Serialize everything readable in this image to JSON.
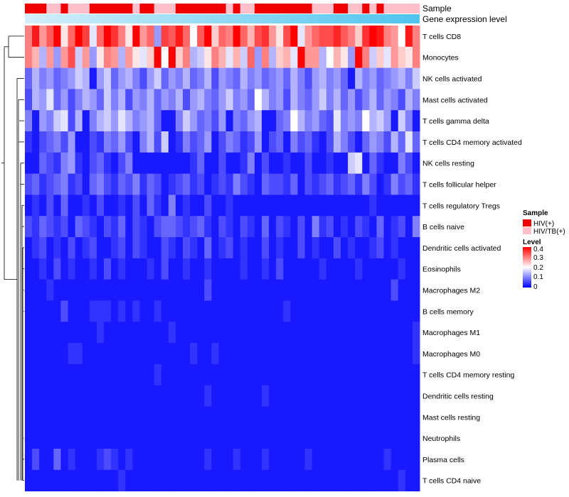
{
  "chart_data": {
    "type": "heatmap",
    "n_samples": 55,
    "annotation_tracks": [
      "Sample",
      "Gene expression level"
    ],
    "sample_groups": [
      "HIV(+)",
      "HIV(+)",
      "HIV(+)",
      "HIV/TB(+)",
      "HIV/TB(+)",
      "HIV(+)",
      "HIV/TB(+)",
      "HIV/TB(+)",
      "HIV/TB(+)",
      "HIV(+)",
      "HIV(+)",
      "HIV(+)",
      "HIV(+)",
      "HIV(+)",
      "HIV(+)",
      "HIV/TB(+)",
      "HIV(+)",
      "HIV(+)",
      "HIV/TB(+)",
      "HIV/TB(+)",
      "HIV/TB(+)",
      "HIV(+)",
      "HIV(+)",
      "HIV(+)",
      "HIV(+)",
      "HIV(+)",
      "HIV(+)",
      "HIV(+)",
      "HIV/TB(+)",
      "HIV(+)",
      "HIV/TB(+)",
      "HIV/TB(+)",
      "HIV(+)",
      "HIV(+)",
      "HIV(+)",
      "HIV(+)",
      "HIV(+)",
      "HIV(+)",
      "HIV(+)",
      "HIV(+)",
      "HIV/TB(+)",
      "HIV/TB(+)",
      "HIV/TB(+)",
      "HIV(+)",
      "HIV(+)",
      "HIV/TB(+)",
      "HIV/TB(+)",
      "HIV(+)",
      "HIV/TB(+)",
      "HIV(+)",
      "HIV/TB(+)",
      "HIV/TB(+)",
      "HIV/TB(+)",
      "HIV/TB(+)",
      "HIV/TB(+)"
    ],
    "rows": [
      "T cells CD8",
      "Monocytes",
      "NK cells activated",
      "Mast cells activated",
      "T cells gamma delta",
      "T cells CD4 memory activated",
      "NK cells resting",
      "T cells follicular helper",
      "T cells regulatory  Tregs",
      "B cells naive",
      "Dendritic cells activated",
      "Eosinophils",
      "Macrophages M2",
      "B cells memory",
      "Macrophages M1",
      "Macrophages M0",
      "T cells CD4 memory resting",
      "Dendritic cells resting",
      "Mast cells resting",
      "Neutrophils",
      "Plasma cells",
      "T cells CD4 naive"
    ],
    "values": [
      [
        0.3,
        0.38,
        0.28,
        0.33,
        0.4,
        0.22,
        0.32,
        0.4,
        0.35,
        0.18,
        0.32,
        0.4,
        0.36,
        0.3,
        0.22,
        0.4,
        0.28,
        0.32,
        0.12,
        0.35,
        0.33,
        0.38,
        0.32,
        0.2,
        0.33,
        0.4,
        0.24,
        0.32,
        0.3,
        0.42,
        0.32,
        0.26,
        0.34,
        0.36,
        0.28,
        0.22,
        0.34,
        0.4,
        0.18,
        0.28,
        0.32,
        0.34,
        0.34,
        0.37,
        0.33,
        0.3,
        0.24,
        0.36,
        0.4,
        0.38,
        0.3,
        0.28,
        0.2,
        0.38,
        0.3
      ],
      [
        0.3,
        0.26,
        0.14,
        0.28,
        0.12,
        0.28,
        0.34,
        0.16,
        0.28,
        0.12,
        0.22,
        0.3,
        0.28,
        0.14,
        0.28,
        0.22,
        0.18,
        0.24,
        0.42,
        0.2,
        0.4,
        0.24,
        0.3,
        0.14,
        0.16,
        0.22,
        0.3,
        0.26,
        0.18,
        0.26,
        0.16,
        0.32,
        0.12,
        0.3,
        0.14,
        0.24,
        0.26,
        0.18,
        0.42,
        0.28,
        0.28,
        0.14,
        0.2,
        0.26,
        0.22,
        0.12,
        0.4,
        0.3,
        0.16,
        0.24,
        0.18,
        0.28,
        0.24,
        0.22,
        0.3
      ],
      [
        0.08,
        0.14,
        0.1,
        0.12,
        0.08,
        0.1,
        0.12,
        0.16,
        0.14,
        0.02,
        0.12,
        0.16,
        0.08,
        0.12,
        0.14,
        0.1,
        0.06,
        0.12,
        0.16,
        0.08,
        0.12,
        0.1,
        0.14,
        0.08,
        0.1,
        0.14,
        0.06,
        0.12,
        0.1,
        0.08,
        0.14,
        0.1,
        0.12,
        0.08,
        0.1,
        0.12,
        0.08,
        0.14,
        0.1,
        0.06,
        0.12,
        0.14,
        0.1,
        0.12,
        0.08,
        0.02,
        0.14,
        0.1,
        0.12,
        0.08,
        0.1,
        0.12,
        0.14,
        0.1,
        0.16
      ],
      [
        0.06,
        0.14,
        0.12,
        0.18,
        0.08,
        0.12,
        0.06,
        0.1,
        0.14,
        0.12,
        0.08,
        0.16,
        0.1,
        0.14,
        0.06,
        0.12,
        0.1,
        0.14,
        0.08,
        0.12,
        0.1,
        0.14,
        0.06,
        0.12,
        0.14,
        0.1,
        0.08,
        0.12,
        0.16,
        0.1,
        0.12,
        0.08,
        0.2,
        0.14,
        0.1,
        0.12,
        0.06,
        0.14,
        0.1,
        0.08,
        0.12,
        0.16,
        0.1,
        0.14,
        0.08,
        0.12,
        0.06,
        0.1,
        0.14,
        0.08,
        0.12,
        0.1,
        0.06,
        0.14,
        0.1
      ],
      [
        0.1,
        0.02,
        0.12,
        0.1,
        0.16,
        0.18,
        0.06,
        0.14,
        0.02,
        0.1,
        0.14,
        0.16,
        0.12,
        0.18,
        0.14,
        0.1,
        0.12,
        0.14,
        0.08,
        0.02,
        0.02,
        0.1,
        0.16,
        0.12,
        0.08,
        0.1,
        0.06,
        0.12,
        0.02,
        0.1,
        0.08,
        0.12,
        0.14,
        0.02,
        0.02,
        0.08,
        0.1,
        0.2,
        0.14,
        0.1,
        0.12,
        0.08,
        0.06,
        0.18,
        0.1,
        0.12,
        0.1,
        0.2,
        0.14,
        0.16,
        0.12,
        0.02,
        0.16,
        0.1,
        0.02
      ],
      [
        0.04,
        0.02,
        0.06,
        0.08,
        0.1,
        0.06,
        0.12,
        0.02,
        0.02,
        0.06,
        0.04,
        0.1,
        0.08,
        0.12,
        0.06,
        0.02,
        0.1,
        0.14,
        0.06,
        0.16,
        0.02,
        0.04,
        0.1,
        0.06,
        0.08,
        0.12,
        0.02,
        0.06,
        0.1,
        0.08,
        0.04,
        0.06,
        0.12,
        0.02,
        0.06,
        0.08,
        0.02,
        0.1,
        0.06,
        0.08,
        0.04,
        0.02,
        0.06,
        0.14,
        0.1,
        0.06,
        0.02,
        0.08,
        0.12,
        0.1,
        0.06,
        0.14,
        0.08,
        0.18,
        0.08
      ],
      [
        0.02,
        0.02,
        0.08,
        0.06,
        0.04,
        0.1,
        0.12,
        0.04,
        0.02,
        0.06,
        0.08,
        0.04,
        0.02,
        0.06,
        0.1,
        0.02,
        0.02,
        0.02,
        0.02,
        0.02,
        0.02,
        0.02,
        0.02,
        0.04,
        0.08,
        0.02,
        0.02,
        0.06,
        0.02,
        0.02,
        0.04,
        0.1,
        0.02,
        0.06,
        0.02,
        0.02,
        0.04,
        0.02,
        0.02,
        0.06,
        0.02,
        0.02,
        0.04,
        0.02,
        0.02,
        0.16,
        0.18,
        0.02,
        0.08,
        0.04,
        0.02,
        0.02,
        0.1,
        0.06,
        0.02
      ],
      [
        0.06,
        0.08,
        0.04,
        0.06,
        0.08,
        0.1,
        0.04,
        0.06,
        0.02,
        0.08,
        0.1,
        0.06,
        0.04,
        0.08,
        0.06,
        0.1,
        0.04,
        0.08,
        0.06,
        0.02,
        0.04,
        0.06,
        0.08,
        0.04,
        0.06,
        0.02,
        0.04,
        0.06,
        0.04,
        0.1,
        0.06,
        0.04,
        0.02,
        0.08,
        0.06,
        0.06,
        0.04,
        0.08,
        0.02,
        0.06,
        0.04,
        0.06,
        0.08,
        0.04,
        0.06,
        0.08,
        0.04,
        0.1,
        0.06,
        0.02,
        0.04,
        0.1,
        0.06,
        0.08,
        0.04
      ],
      [
        0.02,
        0.04,
        0.02,
        0.06,
        0.02,
        0.08,
        0.02,
        0.02,
        0.04,
        0.02,
        0.06,
        0.02,
        0.02,
        0.04,
        0.02,
        0.06,
        0.02,
        0.08,
        0.04,
        0.02,
        0.1,
        0.02,
        0.04,
        0.02,
        0.02,
        0.06,
        0.02,
        0.02,
        0.04,
        0.02,
        0.02,
        0.02,
        0.02,
        0.02,
        0.02,
        0.02,
        0.02,
        0.02,
        0.02,
        0.02,
        0.02,
        0.02,
        0.02,
        0.02,
        0.02,
        0.02,
        0.02,
        0.02,
        0.04,
        0.02,
        0.02,
        0.02,
        0.02,
        0.02,
        0.02
      ],
      [
        0.06,
        0.04,
        0.08,
        0.06,
        0.04,
        0.06,
        0.02,
        0.08,
        0.06,
        0.04,
        0.02,
        0.06,
        0.04,
        0.08,
        0.02,
        0.06,
        0.04,
        0.02,
        0.06,
        0.08,
        0.08,
        0.06,
        0.04,
        0.06,
        0.08,
        0.04,
        0.02,
        0.06,
        0.04,
        0.02,
        0.06,
        0.04,
        0.02,
        0.08,
        0.02,
        0.06,
        0.04,
        0.02,
        0.06,
        0.02,
        0.1,
        0.04,
        0.06,
        0.02,
        0.04,
        0.02,
        0.06,
        0.04,
        0.02,
        0.08,
        0.02,
        0.04,
        0.06,
        0.02,
        0.1
      ],
      [
        0.02,
        0.04,
        0.06,
        0.02,
        0.04,
        0.02,
        0.06,
        0.02,
        0.04,
        0.06,
        0.02,
        0.02,
        0.04,
        0.06,
        0.02,
        0.06,
        0.04,
        0.02,
        0.02,
        0.06,
        0.04,
        0.02,
        0.06,
        0.04,
        0.02,
        0.08,
        0.02,
        0.04,
        0.06,
        0.02,
        0.04,
        0.02,
        0.02,
        0.06,
        0.02,
        0.04,
        0.02,
        0.02,
        0.06,
        0.02,
        0.04,
        0.02,
        0.02,
        0.06,
        0.02,
        0.04,
        0.02,
        0.02,
        0.04,
        0.06,
        0.02,
        0.04,
        0.02,
        0.02,
        0.02
      ],
      [
        0.02,
        0.02,
        0.04,
        0.02,
        0.06,
        0.02,
        0.04,
        0.02,
        0.02,
        0.04,
        0.02,
        0.06,
        0.02,
        0.04,
        0.02,
        0.02,
        0.02,
        0.04,
        0.02,
        0.06,
        0.02,
        0.02,
        0.04,
        0.02,
        0.02,
        0.04,
        0.02,
        0.02,
        0.02,
        0.02,
        0.04,
        0.02,
        0.02,
        0.04,
        0.02,
        0.06,
        0.02,
        0.02,
        0.02,
        0.02,
        0.02,
        0.04,
        0.02,
        0.02,
        0.02,
        0.02,
        0.04,
        0.02,
        0.02,
        0.02,
        0.02,
        0.02,
        0.04,
        0.02,
        0.02
      ],
      [
        0.02,
        0.02,
        0.02,
        0.04,
        0.02,
        0.02,
        0.02,
        0.02,
        0.02,
        0.02,
        0.02,
        0.02,
        0.02,
        0.02,
        0.02,
        0.02,
        0.02,
        0.02,
        0.02,
        0.02,
        0.02,
        0.02,
        0.02,
        0.02,
        0.02,
        0.06,
        0.02,
        0.02,
        0.02,
        0.02,
        0.02,
        0.02,
        0.02,
        0.02,
        0.02,
        0.02,
        0.02,
        0.02,
        0.02,
        0.02,
        0.02,
        0.02,
        0.02,
        0.02,
        0.02,
        0.02,
        0.02,
        0.02,
        0.02,
        0.02,
        0.02,
        0.06,
        0.02,
        0.02,
        0.02
      ],
      [
        0.02,
        0.02,
        0.02,
        0.02,
        0.02,
        0.06,
        0.02,
        0.02,
        0.02,
        0.04,
        0.04,
        0.04,
        0.02,
        0.04,
        0.02,
        0.04,
        0.02,
        0.02,
        0.04,
        0.02,
        0.02,
        0.02,
        0.02,
        0.02,
        0.02,
        0.02,
        0.02,
        0.02,
        0.02,
        0.02,
        0.02,
        0.02,
        0.02,
        0.02,
        0.02,
        0.02,
        0.04,
        0.02,
        0.02,
        0.02,
        0.02,
        0.02,
        0.02,
        0.02,
        0.02,
        0.02,
        0.02,
        0.02,
        0.02,
        0.02,
        0.02,
        0.02,
        0.02,
        0.02,
        0.02
      ],
      [
        0.02,
        0.02,
        0.02,
        0.02,
        0.02,
        0.02,
        0.02,
        0.02,
        0.02,
        0.02,
        0.04,
        0.02,
        0.02,
        0.02,
        0.02,
        0.02,
        0.02,
        0.02,
        0.02,
        0.02,
        0.04,
        0.02,
        0.02,
        0.02,
        0.02,
        0.02,
        0.02,
        0.02,
        0.02,
        0.02,
        0.02,
        0.02,
        0.02,
        0.02,
        0.02,
        0.02,
        0.02,
        0.02,
        0.02,
        0.02,
        0.02,
        0.02,
        0.02,
        0.02,
        0.02,
        0.02,
        0.02,
        0.02,
        0.02,
        0.02,
        0.02,
        0.02,
        0.02,
        0.02,
        0.04
      ],
      [
        0.02,
        0.02,
        0.02,
        0.02,
        0.02,
        0.02,
        0.04,
        0.04,
        0.02,
        0.02,
        0.02,
        0.02,
        0.02,
        0.02,
        0.02,
        0.02,
        0.02,
        0.02,
        0.02,
        0.02,
        0.02,
        0.02,
        0.02,
        0.04,
        0.02,
        0.02,
        0.04,
        0.02,
        0.02,
        0.02,
        0.02,
        0.02,
        0.02,
        0.02,
        0.02,
        0.02,
        0.02,
        0.02,
        0.02,
        0.02,
        0.02,
        0.02,
        0.02,
        0.02,
        0.02,
        0.02,
        0.02,
        0.02,
        0.02,
        0.02,
        0.02,
        0.02,
        0.02,
        0.02,
        0.04
      ],
      [
        0.02,
        0.02,
        0.02,
        0.02,
        0.02,
        0.02,
        0.02,
        0.02,
        0.02,
        0.02,
        0.02,
        0.02,
        0.02,
        0.02,
        0.02,
        0.02,
        0.02,
        0.02,
        0.04,
        0.02,
        0.02,
        0.02,
        0.02,
        0.02,
        0.02,
        0.02,
        0.02,
        0.02,
        0.02,
        0.02,
        0.02,
        0.02,
        0.02,
        0.02,
        0.02,
        0.02,
        0.02,
        0.02,
        0.02,
        0.02,
        0.02,
        0.02,
        0.02,
        0.02,
        0.02,
        0.02,
        0.02,
        0.02,
        0.02,
        0.02,
        0.02,
        0.02,
        0.02,
        0.02,
        0.02
      ],
      [
        0.02,
        0.02,
        0.02,
        0.02,
        0.02,
        0.02,
        0.02,
        0.02,
        0.02,
        0.02,
        0.02,
        0.02,
        0.02,
        0.02,
        0.02,
        0.02,
        0.02,
        0.02,
        0.02,
        0.02,
        0.02,
        0.02,
        0.02,
        0.02,
        0.02,
        0.04,
        0.02,
        0.02,
        0.02,
        0.02,
        0.02,
        0.02,
        0.02,
        0.04,
        0.02,
        0.02,
        0.02,
        0.02,
        0.02,
        0.02,
        0.02,
        0.02,
        0.02,
        0.02,
        0.02,
        0.02,
        0.02,
        0.02,
        0.02,
        0.02,
        0.02,
        0.02,
        0.02,
        0.02,
        0.02
      ],
      [
        0.02,
        0.02,
        0.02,
        0.02,
        0.02,
        0.02,
        0.02,
        0.02,
        0.02,
        0.02,
        0.02,
        0.02,
        0.02,
        0.02,
        0.02,
        0.02,
        0.02,
        0.02,
        0.02,
        0.02,
        0.02,
        0.02,
        0.02,
        0.02,
        0.02,
        0.02,
        0.02,
        0.02,
        0.02,
        0.02,
        0.02,
        0.02,
        0.02,
        0.02,
        0.02,
        0.02,
        0.02,
        0.02,
        0.02,
        0.02,
        0.02,
        0.02,
        0.02,
        0.02,
        0.02,
        0.02,
        0.02,
        0.02,
        0.02,
        0.02,
        0.02,
        0.02,
        0.02,
        0.02,
        0.02
      ],
      [
        0.02,
        0.02,
        0.02,
        0.02,
        0.02,
        0.02,
        0.02,
        0.02,
        0.02,
        0.02,
        0.02,
        0.02,
        0.02,
        0.02,
        0.02,
        0.02,
        0.02,
        0.02,
        0.02,
        0.02,
        0.02,
        0.02,
        0.02,
        0.02,
        0.02,
        0.02,
        0.02,
        0.02,
        0.02,
        0.02,
        0.02,
        0.02,
        0.02,
        0.02,
        0.02,
        0.02,
        0.02,
        0.02,
        0.02,
        0.02,
        0.02,
        0.02,
        0.02,
        0.02,
        0.02,
        0.02,
        0.02,
        0.02,
        0.02,
        0.02,
        0.02,
        0.02,
        0.02,
        0.02,
        0.02
      ],
      [
        0.02,
        0.06,
        0.02,
        0.02,
        0.08,
        0.02,
        0.04,
        0.02,
        0.02,
        0.02,
        0.04,
        0.06,
        0.04,
        0.02,
        0.04,
        0.02,
        0.02,
        0.02,
        0.02,
        0.02,
        0.02,
        0.02,
        0.02,
        0.02,
        0.02,
        0.04,
        0.02,
        0.02,
        0.02,
        0.04,
        0.02,
        0.02,
        0.02,
        0.04,
        0.02,
        0.02,
        0.02,
        0.02,
        0.02,
        0.04,
        0.02,
        0.02,
        0.02,
        0.02,
        0.02,
        0.02,
        0.02,
        0.02,
        0.02,
        0.02,
        0.04,
        0.02,
        0.02,
        0.02,
        0.02
      ],
      [
        0.02,
        0.02,
        0.02,
        0.02,
        0.02,
        0.02,
        0.02,
        0.02,
        0.02,
        0.02,
        0.02,
        0.02,
        0.02,
        0.04,
        0.02,
        0.02,
        0.02,
        0.02,
        0.02,
        0.02,
        0.02,
        0.02,
        0.02,
        0.02,
        0.02,
        0.02,
        0.02,
        0.02,
        0.02,
        0.02,
        0.02,
        0.02,
        0.02,
        0.02,
        0.02,
        0.02,
        0.02,
        0.02,
        0.02,
        0.02,
        0.02,
        0.02,
        0.02,
        0.02,
        0.02,
        0.02,
        0.02,
        0.02,
        0.02,
        0.02,
        0.02,
        0.02,
        0.04,
        0.02,
        0.02
      ]
    ],
    "legend": {
      "sample_title": "Sample",
      "groups": [
        {
          "label": "HIV(+)",
          "color": "#ee0000"
        },
        {
          "label": "HIV/TB(+)",
          "color": "#ffc0cb"
        }
      ],
      "level_title": "Level",
      "level_ticks": [
        "0.4",
        "0.3",
        "0.2",
        "0.1",
        "0"
      ],
      "range": [
        0,
        0.4
      ]
    },
    "colors": {
      "low": "#0000ff",
      "mid": "#ffffff",
      "high": "#ff0000"
    },
    "gradient": [
      "#d4effa",
      "#4fc4ee"
    ],
    "dendrogram": "row"
  }
}
